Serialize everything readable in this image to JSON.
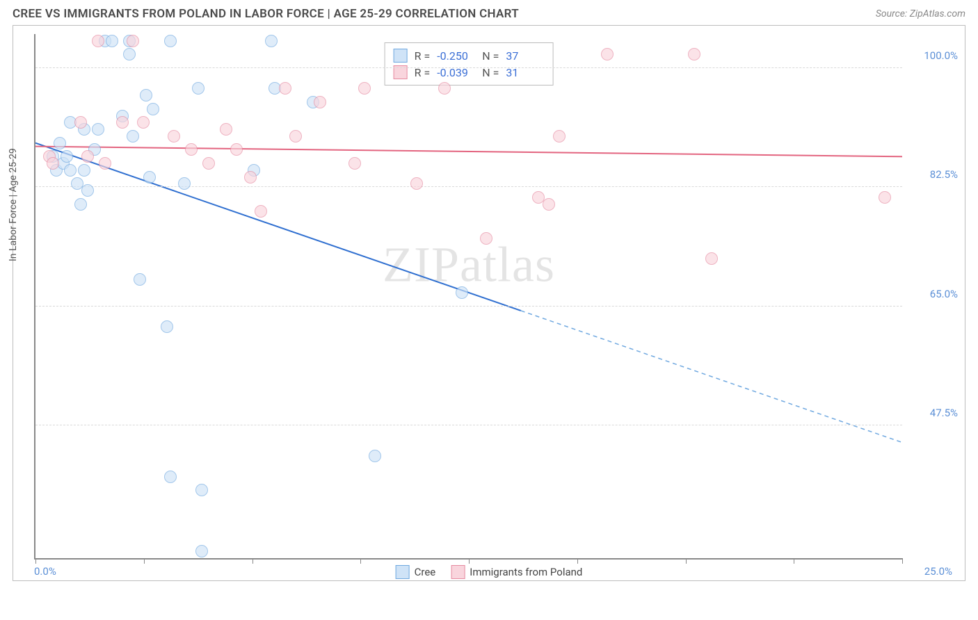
{
  "header": {
    "title": "CREE VS IMMIGRANTS FROM POLAND IN LABOR FORCE | AGE 25-29 CORRELATION CHART",
    "source_prefix": "Source: ",
    "source_name": "ZipAtlas.com"
  },
  "watermark": {
    "zip": "ZIP",
    "atlas": "atlas"
  },
  "chart": {
    "type": "scatter",
    "y_axis_title": "In Labor Force | Age 25-29",
    "xlim": [
      0,
      25
    ],
    "ylim": [
      28,
      105
    ],
    "x_min_label": "0.0%",
    "x_max_label": "25.0%",
    "x_ticks_pct": [
      0,
      12.5,
      25,
      37.5,
      50,
      62.5,
      75,
      87.5,
      100
    ],
    "y_gridlines": [
      {
        "value": 100.0,
        "label": "100.0%"
      },
      {
        "value": 82.5,
        "label": "82.5%"
      },
      {
        "value": 65.0,
        "label": "65.0%"
      },
      {
        "value": 47.5,
        "label": "47.5%"
      }
    ],
    "point_radius": 9,
    "point_border_width": 1.5,
    "series": [
      {
        "name": "Cree",
        "fill": "#cfe3f7",
        "border": "#6fa8e0",
        "fill_opacity": 0.65,
        "points": [
          [
            0.5,
            87
          ],
          [
            0.6,
            85
          ],
          [
            0.7,
            89
          ],
          [
            0.8,
            86
          ],
          [
            0.9,
            87
          ],
          [
            1.0,
            92
          ],
          [
            1.0,
            85
          ],
          [
            1.2,
            83
          ],
          [
            1.3,
            80
          ],
          [
            1.4,
            85
          ],
          [
            1.4,
            91
          ],
          [
            1.5,
            82
          ],
          [
            1.7,
            88
          ],
          [
            1.8,
            91
          ],
          [
            2.0,
            104
          ],
          [
            2.2,
            104
          ],
          [
            2.5,
            93
          ],
          [
            2.7,
            104
          ],
          [
            2.7,
            102
          ],
          [
            2.8,
            90
          ],
          [
            3.0,
            69
          ],
          [
            3.2,
            96
          ],
          [
            3.3,
            84
          ],
          [
            3.4,
            94
          ],
          [
            3.9,
            40
          ],
          [
            3.9,
            104
          ],
          [
            3.8,
            62
          ],
          [
            4.3,
            83
          ],
          [
            4.7,
            97
          ],
          [
            4.8,
            38
          ],
          [
            4.8,
            29
          ],
          [
            6.3,
            85
          ],
          [
            6.9,
            97
          ],
          [
            6.8,
            104
          ],
          [
            8.0,
            95
          ],
          [
            9.8,
            43
          ],
          [
            12.3,
            67
          ]
        ],
        "trend": {
          "y_at_x0": 89.0,
          "y_at_x25": 45.0,
          "solid_until_x": 14.0,
          "solid_color": "#2f6fd0",
          "dash_color": "#6fa8e0",
          "width": 2
        },
        "stats": {
          "R": "-0.250",
          "N": "37"
        }
      },
      {
        "name": "Immigrants from Poland",
        "fill": "#f9d5dd",
        "border": "#e68aa0",
        "fill_opacity": 0.65,
        "points": [
          [
            0.4,
            87
          ],
          [
            0.5,
            86
          ],
          [
            1.3,
            92
          ],
          [
            1.5,
            87
          ],
          [
            1.8,
            104
          ],
          [
            2.0,
            86
          ],
          [
            2.5,
            92
          ],
          [
            2.8,
            104
          ],
          [
            3.1,
            92
          ],
          [
            4.0,
            90
          ],
          [
            4.5,
            88
          ],
          [
            5.0,
            86
          ],
          [
            5.5,
            91
          ],
          [
            5.8,
            88
          ],
          [
            6.2,
            84
          ],
          [
            6.5,
            79
          ],
          [
            7.2,
            97
          ],
          [
            7.5,
            90
          ],
          [
            8.2,
            95
          ],
          [
            9.2,
            86
          ],
          [
            9.5,
            97
          ],
          [
            11.0,
            83
          ],
          [
            11.8,
            97
          ],
          [
            13.0,
            75
          ],
          [
            14.5,
            81
          ],
          [
            14.8,
            80
          ],
          [
            15.1,
            90
          ],
          [
            16.5,
            102
          ],
          [
            19.0,
            102
          ],
          [
            19.5,
            72
          ],
          [
            24.5,
            81
          ]
        ],
        "trend": {
          "y_at_x0": 88.5,
          "y_at_x25": 87.0,
          "solid_until_x": 25.0,
          "solid_color": "#e3647f",
          "dash_color": "#e68aa0",
          "width": 2
        },
        "stats": {
          "R": "-0.039",
          "N": "31"
        }
      }
    ],
    "stats_labels": {
      "R": "R =",
      "N": "N ="
    }
  },
  "legend": {
    "items": [
      {
        "label": "Cree",
        "fill": "#cfe3f7",
        "border": "#6fa8e0"
      },
      {
        "label": "Immigrants from Poland",
        "fill": "#f9d5dd",
        "border": "#e68aa0"
      }
    ]
  }
}
